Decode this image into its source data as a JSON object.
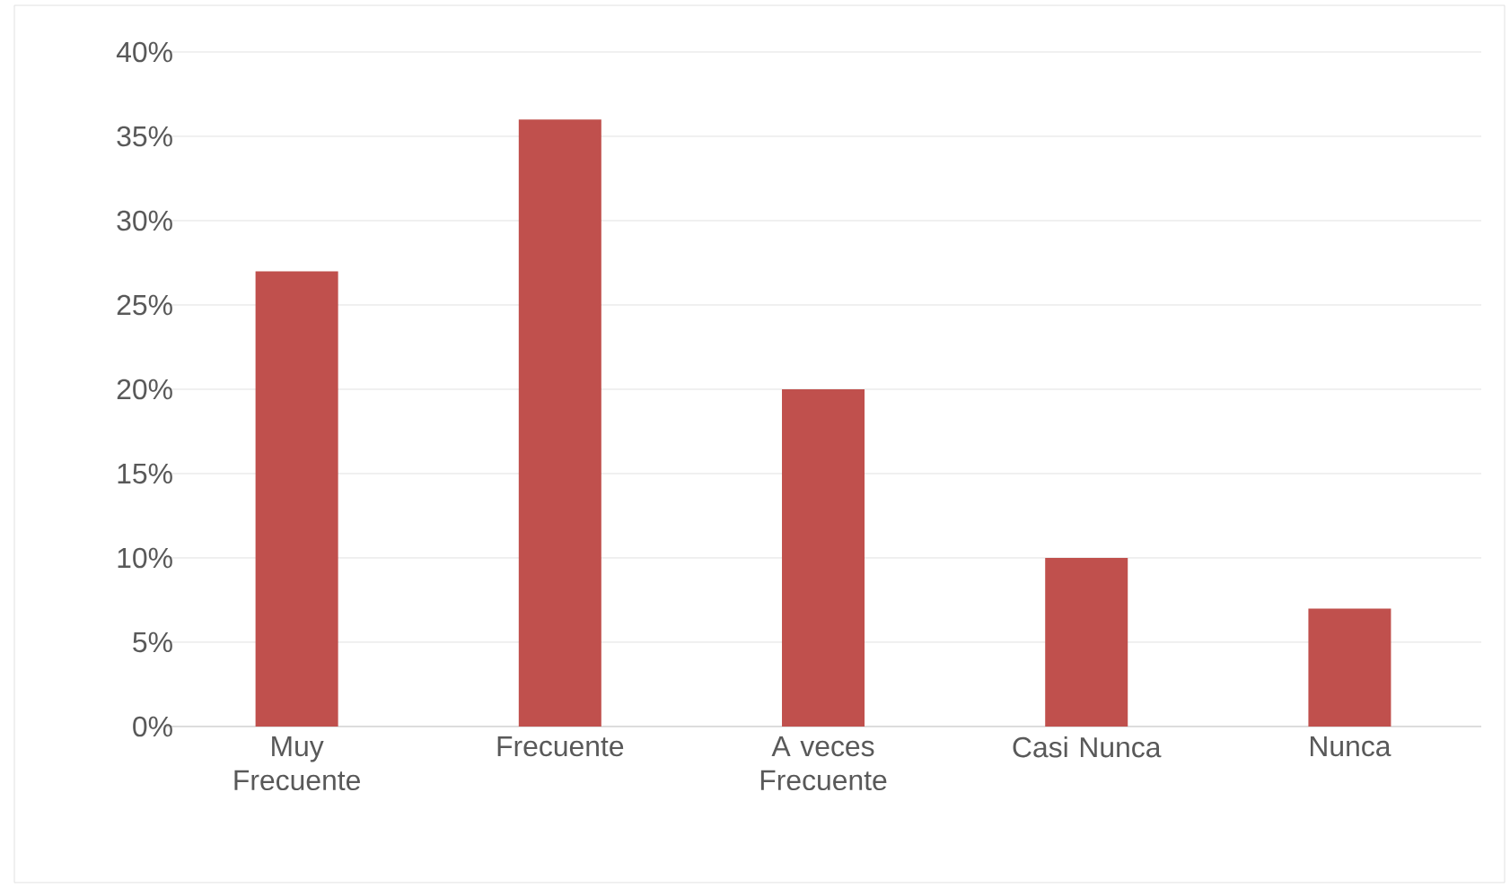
{
  "chart_data": {
    "type": "bar",
    "categories": [
      "Muy Frecuente",
      "Frecuente",
      "A veces Frecuente",
      "Casi Nunca",
      "Nunca"
    ],
    "values": [
      27,
      36,
      20,
      10,
      7
    ],
    "color": "#c0504d",
    "ylim": [
      0,
      40
    ],
    "yticks": [
      {
        "value": 0,
        "label": "0%"
      },
      {
        "value": 5,
        "label": "5%"
      },
      {
        "value": 10,
        "label": "10%"
      },
      {
        "value": 15,
        "label": "15%"
      },
      {
        "value": 20,
        "label": "20%"
      },
      {
        "value": 25,
        "label": "25%"
      },
      {
        "value": 30,
        "label": "30%"
      },
      {
        "value": 35,
        "label": "35%"
      },
      {
        "value": 40,
        "label": "40%"
      }
    ],
    "grid": "y"
  }
}
